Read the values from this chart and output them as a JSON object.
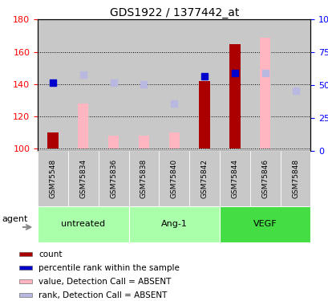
{
  "title": "GDS1922 / 1377442_at",
  "samples": [
    "GSM75548",
    "GSM75834",
    "GSM75836",
    "GSM75838",
    "GSM75840",
    "GSM75842",
    "GSM75844",
    "GSM75846",
    "GSM75848"
  ],
  "red_bar_indices": [
    0,
    5,
    6
  ],
  "red_bar_values": [
    110,
    142,
    165
  ],
  "pink_bar_indices": [
    1,
    2,
    3,
    4,
    7
  ],
  "pink_bar_values": [
    128,
    108,
    108,
    110,
    169
  ],
  "blue_sq_indices": [
    0,
    5,
    6
  ],
  "blue_sq_values": [
    141,
    145,
    147
  ],
  "lavender_sq_indices": [
    1,
    2,
    3,
    4,
    7,
    8
  ],
  "lavender_sq_values": [
    146,
    141,
    140,
    128,
    147,
    136
  ],
  "ylim_left": [
    99,
    180
  ],
  "yticks_left": [
    100,
    120,
    140,
    160,
    180
  ],
  "ylim_right": [
    0,
    100
  ],
  "yticks_right": [
    0,
    25,
    50,
    75,
    100
  ],
  "bar_width": 0.35,
  "marker_size": 6,
  "red_color": "#aa0000",
  "pink_color": "#ffb6c1",
  "blue_color": "#0000cc",
  "lavender_color": "#b8b8e0",
  "groups": [
    {
      "label": "untreated",
      "start": 0,
      "end": 2,
      "color": "#aaffaa"
    },
    {
      "label": "Ang-1",
      "start": 3,
      "end": 5,
      "color": "#aaffaa"
    },
    {
      "label": "VEGF",
      "start": 6,
      "end": 8,
      "color": "#44dd44"
    }
  ],
  "col_bg_color": "#c8c8c8",
  "plot_bg_color": "#ffffff",
  "legend_items": [
    {
      "color": "#aa0000",
      "label": "count"
    },
    {
      "color": "#0000cc",
      "label": "percentile rank within the sample"
    },
    {
      "color": "#ffb6c1",
      "label": "value, Detection Call = ABSENT"
    },
    {
      "color": "#b8b8e0",
      "label": "rank, Detection Call = ABSENT"
    }
  ]
}
